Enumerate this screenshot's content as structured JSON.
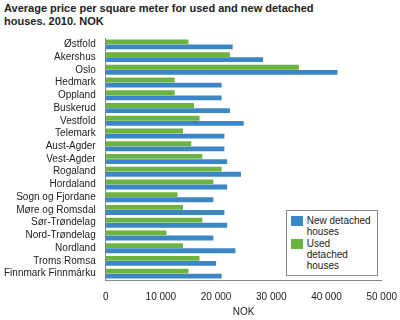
{
  "chart_data": {
    "type": "bar",
    "orientation": "horizontal",
    "title": "Average price per square meter for used and new detached houses. 2010. NOK",
    "x_label": "NOK",
    "categories": [
      "Østfold",
      "Akershus",
      "Oslo",
      "Hedmark",
      "Oppland",
      "Buskerud",
      "Vestfold",
      "Telemark",
      "Aust-Agder",
      "Vest-Agder",
      "Rogaland",
      "Hordaland",
      "Sogn og Fjordane",
      "Møre og Romsdal",
      "Sør-Trøndelag",
      "Nord-Trøndelag",
      "Nordland",
      "Troms Romsa",
      "Finnmark Finnmárku"
    ],
    "series": [
      {
        "name": "New detached houses",
        "color": "#3b86c4",
        "values": [
          23000,
          28500,
          42000,
          21000,
          21000,
          22500,
          25000,
          21500,
          21500,
          22000,
          24500,
          22000,
          19500,
          21500,
          22000,
          19500,
          23500,
          20000,
          21000
        ]
      },
      {
        "name": "Used detached houses",
        "color": "#6cb33f",
        "values": [
          15000,
          22500,
          35000,
          12500,
          12500,
          16000,
          17000,
          14000,
          15500,
          17500,
          21000,
          19500,
          13000,
          14000,
          17500,
          11000,
          14000,
          17000,
          15000
        ]
      }
    ],
    "xlim": [
      0,
      50000
    ],
    "xticks": [
      0,
      {
        "value": 10000,
        "label": "10 000"
      },
      {
        "value": 20000,
        "label": "20 000"
      },
      {
        "value": 30000,
        "label": "30 000"
      },
      {
        "value": 40000,
        "label": "40 000"
      },
      {
        "value": 50000,
        "label": "50 000"
      }
    ],
    "grid": false,
    "legend": "lower right"
  }
}
